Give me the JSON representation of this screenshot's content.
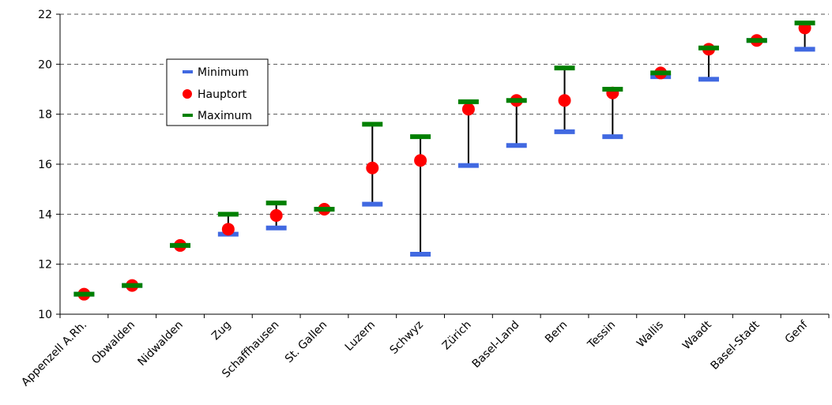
{
  "chart_data": {
    "type": "scatter",
    "categories": [
      "Appenzell A.Rh.",
      "Obwalden",
      "Nidwalden",
      "Zug",
      "Schaffhausen",
      "St. Gallen",
      "Luzern",
      "Schwyz",
      "Zürich",
      "Basel-Land",
      "Bern",
      "Tessin",
      "Wallis",
      "Waadt",
      "Basel-Stadt",
      "Genf"
    ],
    "series": [
      {
        "name": "Minimum",
        "color": "#4169e1",
        "values": [
          10.8,
          11.15,
          12.75,
          13.2,
          13.45,
          14.2,
          14.4,
          12.4,
          15.95,
          16.75,
          17.3,
          17.1,
          19.5,
          19.4,
          20.95,
          20.6
        ]
      },
      {
        "name": "Hauptort",
        "color": "#ff0000",
        "values": [
          10.8,
          11.15,
          12.75,
          13.4,
          13.95,
          14.2,
          15.85,
          16.15,
          18.2,
          18.55,
          18.55,
          18.85,
          19.65,
          20.6,
          20.95,
          21.45
        ]
      },
      {
        "name": "Maximum",
        "color": "#008000",
        "values": [
          10.8,
          11.15,
          12.75,
          14.0,
          14.45,
          14.2,
          17.6,
          17.1,
          18.5,
          18.55,
          19.85,
          19.0,
          19.65,
          20.65,
          20.95,
          21.65
        ]
      }
    ],
    "yticks": [
      "10",
      "12",
      "14",
      "16",
      "18",
      "20",
      "22"
    ],
    "ylim": [
      10,
      22
    ],
    "grid": true,
    "legend": {
      "position": "upper-left",
      "labels": [
        "Minimum",
        "Hauptort",
        "Maximum"
      ]
    }
  }
}
